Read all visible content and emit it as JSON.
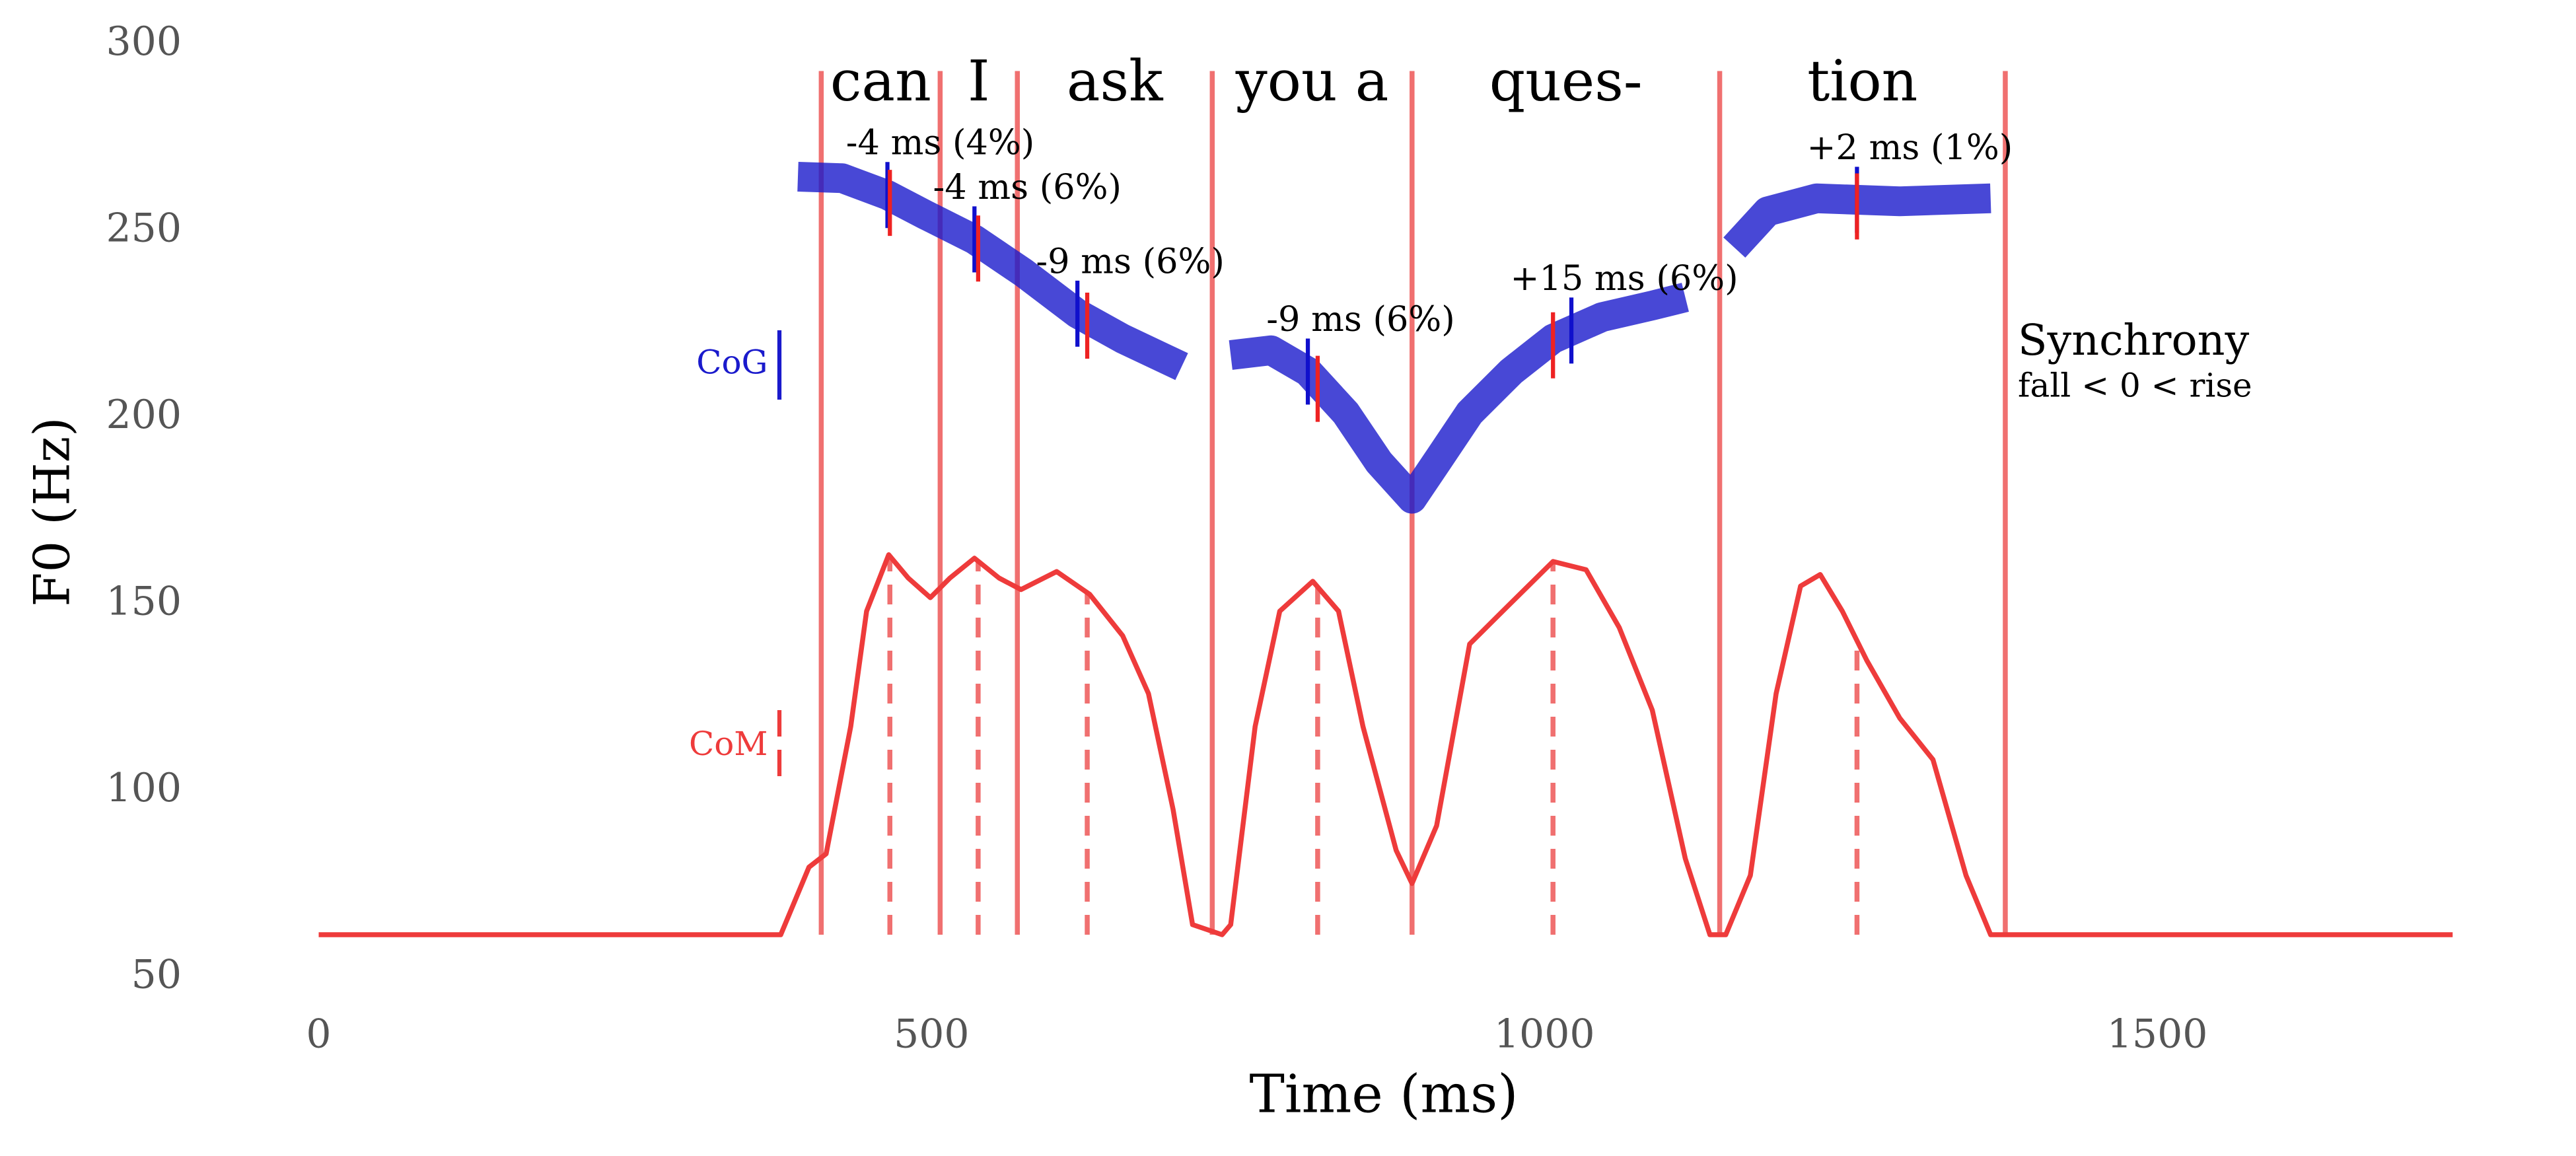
{
  "chart_data": {
    "type": "line",
    "xlabel": "Time (ms)",
    "ylabel": "F0 (Hz)",
    "xlim": [
      0,
      1750
    ],
    "ylim": [
      50,
      300
    ],
    "xticks": [
      0,
      500,
      1000,
      1500
    ],
    "yticks": [
      50,
      100,
      150,
      200,
      250,
      300
    ],
    "series": [
      {
        "name": "CoM",
        "color": "#ee3b3b",
        "x": [
          0,
          377,
          400,
          414,
          434,
          447,
          465,
          481,
          499,
          515,
          535,
          555,
          573,
          602,
          629,
          656,
          677,
          697,
          713,
          737,
          744,
          764,
          784,
          811,
          832,
          852,
          879,
          892,
          912,
          939,
          966,
          1007,
          1034,
          1061,
          1088,
          1115,
          1135,
          1148,
          1168,
          1189,
          1209,
          1225,
          1243,
          1263,
          1290,
          1317,
          1344,
          1364,
          1741
        ],
        "values": [
          61.5,
          61.5,
          79.6,
          83.2,
          117.3,
          148.2,
          163.3,
          157.1,
          151.8,
          157.1,
          162.4,
          157.1,
          154,
          158.8,
          152.7,
          141.6,
          126.1,
          95.1,
          64.2,
          61.5,
          64.2,
          117.3,
          148.2,
          156.2,
          148.2,
          117.3,
          84.1,
          75.2,
          90.7,
          139.4,
          148.2,
          161.5,
          159.3,
          143.8,
          121.7,
          81.9,
          61.5,
          61.5,
          77.4,
          126.1,
          154.9,
          158,
          148.2,
          135,
          119.5,
          108.4,
          77.4,
          61.5,
          61.5
        ]
      },
      {
        "name": "CoG",
        "color": "#1a1acc",
        "x": [
          391,
          427,
          464,
          495,
          535,
          575,
          619,
          656,
          704,
          null,
          744,
          777,
          807,
          838,
          865,
          892,
          912,
          939,
          973,
          1007,
          1047,
          1088,
          1115,
          null,
          1155,
          1182,
          1222,
          1290,
          1364
        ],
        "values": [
          264.6,
          264.2,
          259.7,
          254.4,
          247.8,
          238.9,
          227.9,
          221.2,
          213.7,
          null,
          216.8,
          218.1,
          212.4,
          201.3,
          188.1,
          178.3,
          188.1,
          201.3,
          212.4,
          221.2,
          227,
          230.1,
          232.3,
          null,
          245.6,
          255.3,
          258.8,
          258,
          258.8
        ]
      }
    ],
    "boundaries": [
      410,
      507,
      570,
      729,
      892,
      1143,
      1376
    ],
    "syllables": [
      "can",
      "I",
      "ask",
      "you a",
      "ques-",
      "tion"
    ],
    "cog_x": [
      464,
      535,
      619,
      807,
      1022,
      1255
    ],
    "com_x": [
      466,
      538,
      627,
      815,
      1007,
      1255
    ],
    "shifts": [
      "-4 ms (4%)",
      "-4 ms (6%)",
      "-9 ms (6%)",
      "-9 ms (6%)",
      "+15 ms (6%)",
      "+2 ms (1%)"
    ],
    "note_title": "Synchrony",
    "note_text": "fall < 0 < rise"
  }
}
